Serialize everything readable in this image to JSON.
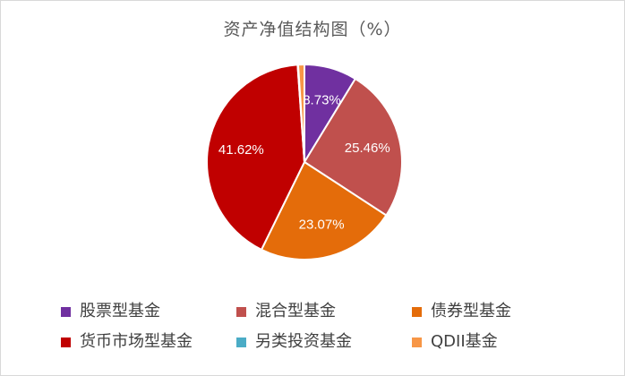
{
  "chart_data": {
    "type": "pie",
    "title": "资产净值结构图（%）",
    "labels": [
      "股票型基金",
      "混合型基金",
      "债券型基金",
      "货币市场型基金",
      "另类投资基金",
      "QDII基金"
    ],
    "values": [
      8.73,
      25.46,
      23.07,
      41.62,
      0.09,
      1.03
    ],
    "data_labels": [
      "8.73%",
      "25.46%",
      "23.07%",
      "41.62%",
      "",
      ""
    ],
    "colors": [
      "#7030a0",
      "#c0504d",
      "#e46c0a",
      "#c00000",
      "#4bacc6",
      "#f79646"
    ],
    "legend_position": "bottom"
  }
}
